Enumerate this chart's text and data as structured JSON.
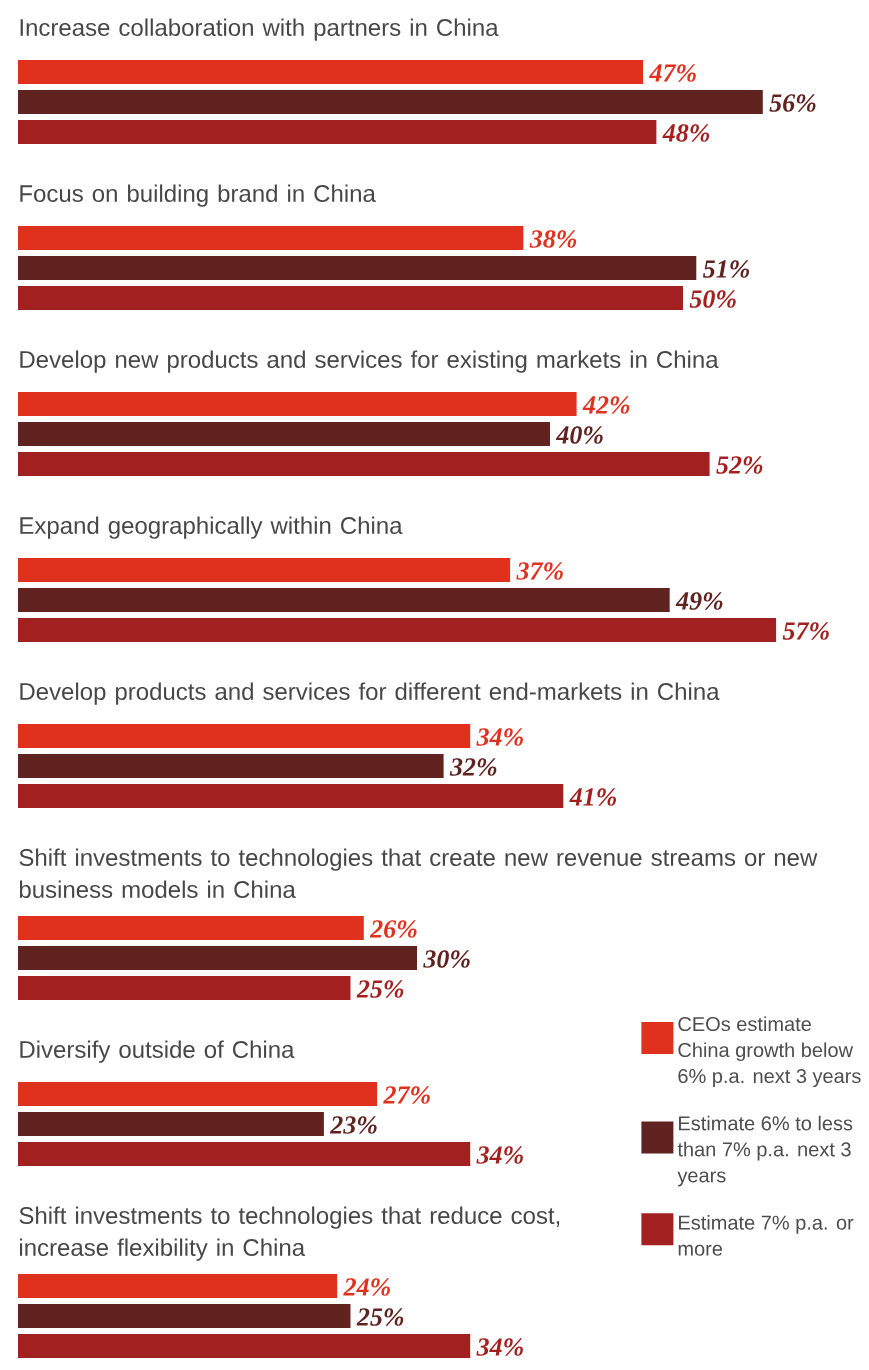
{
  "chart_data": {
    "type": "bar",
    "orientation": "horizontal",
    "legend": "right",
    "categories": [
      "Increase collaboration with partners in China",
      "Focus on building brand in China",
      "Develop new products and services for existing markets in China",
      "Expand geographically within China",
      "Develop products and services for different end-markets in China",
      "Shift investments to technologies that create new revenue streams or new business models in China",
      "Diversify outside of China",
      "Shift investments to technologies that reduce cost, increase flexibility in China"
    ],
    "series": [
      {
        "name": "CEOs estimate China growth below 6% p.a. next 3 years",
        "color": "#e0301e",
        "values": [
          47,
          38,
          42,
          37,
          34,
          26,
          27,
          24
        ],
        "value_labels": [
          "47%",
          "38%",
          "42%",
          "37%",
          "34%",
          "26%",
          "27%",
          "24%"
        ]
      },
      {
        "name": "Estimate 6% to less than 7% p.a. next 3 years",
        "color": "#602320",
        "values": [
          56,
          51,
          40,
          49,
          32,
          30,
          23,
          25
        ],
        "value_labels": [
          "56%",
          "51%",
          "40%",
          "49%",
          "32%",
          "30%",
          "23%",
          "25%"
        ]
      },
      {
        "name": "Estimate 7% p.a. or more",
        "color": "#a32020",
        "values": [
          48,
          50,
          52,
          57,
          41,
          25,
          34,
          34
        ],
        "value_labels": [
          "48%",
          "50%",
          "52%",
          "57%",
          "41%",
          "25%",
          "34%",
          "34%"
        ]
      }
    ]
  }
}
